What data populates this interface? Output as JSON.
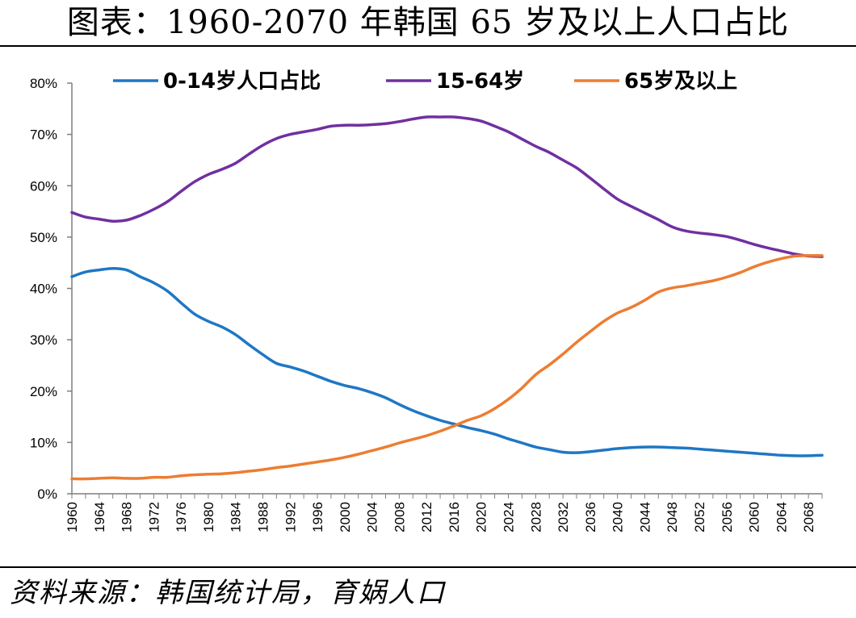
{
  "title": "图表：1960-2070 年韩国 65 岁及以上人口占比",
  "source": "资料来源：韩国统计局，育娲人口",
  "chart_data": {
    "type": "line",
    "title": "图表：1960-2070 年韩国 65 岁及以上人口占比",
    "xlabel": "",
    "ylabel": "",
    "xlim": [
      1960,
      2070
    ],
    "ylim": [
      0,
      80
    ],
    "yticks": [
      0,
      10,
      20,
      30,
      40,
      50,
      60,
      70,
      80
    ],
    "ytick_labels": [
      "0%",
      "10%",
      "20%",
      "30%",
      "40%",
      "50%",
      "60%",
      "70%",
      "80%"
    ],
    "xtick_labels": [
      "1960",
      "1964",
      "1968",
      "1972",
      "1976",
      "1980",
      "1984",
      "1988",
      "1992",
      "1996",
      "2000",
      "2004",
      "2008",
      "2012",
      "2016",
      "2020",
      "2024",
      "2028",
      "2032",
      "2036",
      "2040",
      "2044",
      "2048",
      "2052",
      "2056",
      "2060",
      "2064",
      "2068"
    ],
    "grid": false,
    "legend_position": "top",
    "x": [
      1960,
      1962,
      1964,
      1966,
      1968,
      1970,
      1972,
      1974,
      1976,
      1978,
      1980,
      1982,
      1984,
      1986,
      1988,
      1990,
      1992,
      1994,
      1996,
      1998,
      2000,
      2002,
      2004,
      2006,
      2008,
      2010,
      2012,
      2014,
      2016,
      2018,
      2020,
      2022,
      2024,
      2026,
      2028,
      2030,
      2032,
      2034,
      2036,
      2038,
      2040,
      2042,
      2044,
      2046,
      2048,
      2050,
      2052,
      2054,
      2056,
      2058,
      2060,
      2062,
      2064,
      2066,
      2068,
      2070
    ],
    "series": [
      {
        "name": "0-14岁人口占比",
        "color": "#1F77C4",
        "values": [
          42.3,
          43.2,
          43.6,
          43.9,
          43.6,
          42.3,
          41.1,
          39.5,
          37.2,
          35.0,
          33.6,
          32.5,
          31.0,
          29.0,
          27.1,
          25.4,
          24.7,
          23.9,
          22.9,
          21.9,
          21.1,
          20.5,
          19.7,
          18.7,
          17.4,
          16.2,
          15.2,
          14.3,
          13.6,
          12.9,
          12.3,
          11.6,
          10.7,
          9.9,
          9.1,
          8.6,
          8.1,
          8.0,
          8.2,
          8.5,
          8.8,
          9.0,
          9.1,
          9.1,
          9.0,
          8.9,
          8.7,
          8.5,
          8.3,
          8.1,
          7.9,
          7.7,
          7.5,
          7.4,
          7.4,
          7.5
        ]
      },
      {
        "name": "15-64岁",
        "color": "#7030A0",
        "values": [
          54.8,
          53.9,
          53.5,
          53.1,
          53.3,
          54.2,
          55.4,
          56.9,
          58.9,
          60.8,
          62.2,
          63.2,
          64.4,
          66.2,
          67.9,
          69.2,
          70.0,
          70.5,
          71.0,
          71.6,
          71.8,
          71.8,
          71.9,
          72.1,
          72.5,
          73.0,
          73.4,
          73.4,
          73.4,
          73.1,
          72.6,
          71.6,
          70.5,
          69.1,
          67.7,
          66.5,
          65.0,
          63.5,
          61.5,
          59.4,
          57.4,
          56.0,
          54.7,
          53.4,
          52.0,
          51.2,
          50.8,
          50.5,
          50.1,
          49.4,
          48.6,
          47.9,
          47.3,
          46.7,
          46.3,
          46.2
        ]
      },
      {
        "name": "65岁及以上",
        "color": "#ED7D31",
        "values": [
          2.9,
          2.9,
          3.0,
          3.1,
          3.0,
          3.0,
          3.2,
          3.2,
          3.5,
          3.7,
          3.8,
          3.9,
          4.1,
          4.4,
          4.7,
          5.1,
          5.4,
          5.8,
          6.2,
          6.6,
          7.1,
          7.7,
          8.4,
          9.1,
          9.9,
          10.6,
          11.3,
          12.2,
          13.2,
          14.3,
          15.2,
          16.6,
          18.4,
          20.6,
          23.2,
          25.1,
          27.2,
          29.5,
          31.6,
          33.6,
          35.2,
          36.3,
          37.7,
          39.3,
          40.1,
          40.5,
          41.0,
          41.5,
          42.2,
          43.1,
          44.2,
          45.1,
          45.8,
          46.3,
          46.4,
          46.4
        ]
      }
    ]
  }
}
